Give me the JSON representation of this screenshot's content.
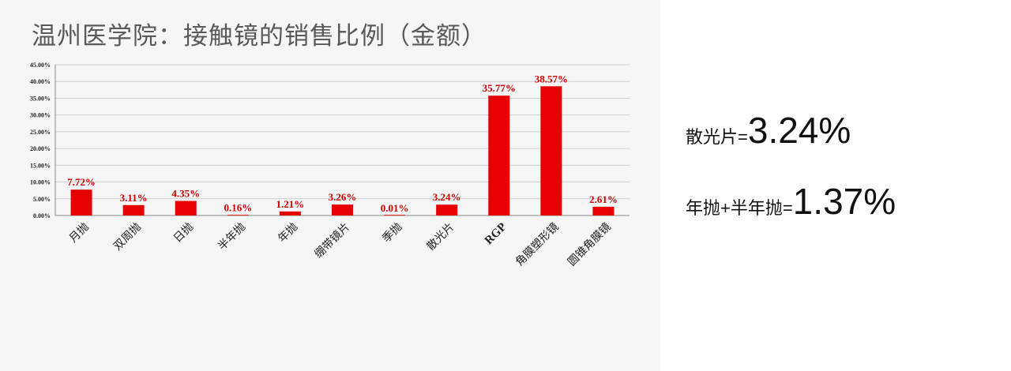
{
  "chart_data": {
    "type": "bar",
    "title": "温州医学院：接触镜的销售比例（金额）",
    "categories": [
      "月抛",
      "双周抛",
      "日抛",
      "半年抛",
      "年抛",
      "绷带镜片",
      "季抛",
      "散光片",
      "RGP",
      "角膜塑形镜",
      "圆锥角膜镜"
    ],
    "values": [
      7.72,
      3.11,
      4.35,
      0.16,
      1.21,
      3.26,
      0.01,
      3.24,
      35.77,
      38.57,
      2.61
    ],
    "data_labels": [
      "7.72%",
      "3.11%",
      "4.35%",
      "0.16%",
      "1.21%",
      "3.26%",
      "0.01%",
      "3.24%",
      "35.77%",
      "38.57%",
      "2.61%"
    ],
    "y_ticks": [
      "0.00%",
      "5.00%",
      "10.00%",
      "15.00%",
      "20.00%",
      "25.00%",
      "30.00%",
      "35.00%",
      "40.00%",
      "45.00%"
    ],
    "ylim": [
      0,
      45
    ],
    "grid": true,
    "bar_color": "#e60000",
    "label_color": "#cc0000"
  },
  "annotations": [
    {
      "label": "散光片=",
      "value": "3.24%"
    },
    {
      "label": "年抛+半年抛=",
      "value": "1.37%"
    }
  ]
}
